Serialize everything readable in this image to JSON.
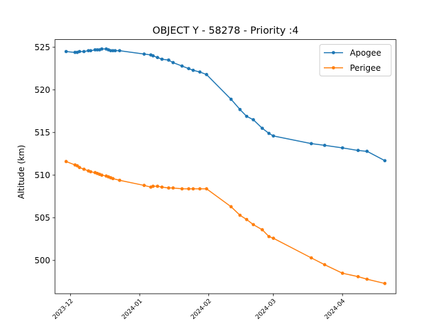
{
  "chart_data": {
    "type": "line",
    "title": "OBJECT Y - 58278 - Priority :4",
    "xlabel": "",
    "ylabel": "Altitude (km)",
    "x_ticks": [
      "2023-12",
      "2024-01",
      "2024-02",
      "2024-03",
      "2024-04"
    ],
    "y_ticks": [
      500,
      505,
      510,
      515,
      520,
      525
    ],
    "xlim": [
      "2023-11-24",
      "2024-04-25"
    ],
    "ylim": [
      496.1,
      525.9
    ],
    "grid": false,
    "legend_position": "top-right",
    "series": [
      {
        "name": "Apogee",
        "color": "#1f77b4",
        "marker": "circle",
        "points": [
          [
            "2023-11-29",
            524.5
          ],
          [
            "2023-12-03",
            524.4
          ],
          [
            "2023-12-04",
            524.4
          ],
          [
            "2023-12-05",
            524.5
          ],
          [
            "2023-12-07",
            524.5
          ],
          [
            "2023-12-09",
            524.6
          ],
          [
            "2023-12-10",
            524.6
          ],
          [
            "2023-12-12",
            524.7
          ],
          [
            "2023-12-13",
            524.7
          ],
          [
            "2023-12-14",
            524.7
          ],
          [
            "2023-12-15",
            524.8
          ],
          [
            "2023-12-17",
            524.8
          ],
          [
            "2023-12-18",
            524.7
          ],
          [
            "2023-12-19",
            524.6
          ],
          [
            "2023-12-20",
            524.6
          ],
          [
            "2023-12-21",
            524.6
          ],
          [
            "2023-12-23",
            524.6
          ],
          [
            "2024-01-03",
            524.2
          ],
          [
            "2024-01-06",
            524.1
          ],
          [
            "2024-01-07",
            524.0
          ],
          [
            "2024-01-09",
            523.8
          ],
          [
            "2024-01-11",
            523.6
          ],
          [
            "2024-01-14",
            523.5
          ],
          [
            "2024-01-16",
            523.2
          ],
          [
            "2024-01-20",
            522.8
          ],
          [
            "2024-01-23",
            522.5
          ],
          [
            "2024-01-25",
            522.3
          ],
          [
            "2024-01-28",
            522.1
          ],
          [
            "2024-01-31",
            521.8
          ],
          [
            "2024-02-11",
            518.9
          ],
          [
            "2024-02-15",
            517.7
          ],
          [
            "2024-02-18",
            516.9
          ],
          [
            "2024-02-21",
            516.5
          ],
          [
            "2024-02-25",
            515.5
          ],
          [
            "2024-02-28",
            514.9
          ],
          [
            "2024-03-01",
            514.6
          ],
          [
            "2024-03-18",
            513.7
          ],
          [
            "2024-03-24",
            513.5
          ],
          [
            "2024-04-01",
            513.2
          ],
          [
            "2024-04-08",
            512.9
          ],
          [
            "2024-04-12",
            512.8
          ],
          [
            "2024-04-20",
            511.7
          ]
        ]
      },
      {
        "name": "Perigee",
        "color": "#ff7f0e",
        "marker": "circle",
        "points": [
          [
            "2023-11-29",
            511.6
          ],
          [
            "2023-12-03",
            511.2
          ],
          [
            "2023-12-04",
            511.1
          ],
          [
            "2023-12-05",
            510.9
          ],
          [
            "2023-12-07",
            510.7
          ],
          [
            "2023-12-09",
            510.5
          ],
          [
            "2023-12-10",
            510.4
          ],
          [
            "2023-12-12",
            510.3
          ],
          [
            "2023-12-13",
            510.2
          ],
          [
            "2023-12-14",
            510.1
          ],
          [
            "2023-12-15",
            510.0
          ],
          [
            "2023-12-17",
            509.9
          ],
          [
            "2023-12-18",
            509.8
          ],
          [
            "2023-12-19",
            509.7
          ],
          [
            "2023-12-20",
            509.6
          ],
          [
            "2023-12-23",
            509.4
          ],
          [
            "2024-01-03",
            508.8
          ],
          [
            "2024-01-06",
            508.6
          ],
          [
            "2024-01-07",
            508.7
          ],
          [
            "2024-01-09",
            508.7
          ],
          [
            "2024-01-11",
            508.6
          ],
          [
            "2024-01-14",
            508.5
          ],
          [
            "2024-01-16",
            508.5
          ],
          [
            "2024-01-20",
            508.4
          ],
          [
            "2024-01-23",
            508.4
          ],
          [
            "2024-01-25",
            508.4
          ],
          [
            "2024-01-28",
            508.4
          ],
          [
            "2024-01-31",
            508.4
          ],
          [
            "2024-02-11",
            506.3
          ],
          [
            "2024-02-15",
            505.3
          ],
          [
            "2024-02-18",
            504.8
          ],
          [
            "2024-02-21",
            504.2
          ],
          [
            "2024-02-25",
            503.6
          ],
          [
            "2024-02-28",
            502.8
          ],
          [
            "2024-03-01",
            502.6
          ],
          [
            "2024-03-18",
            500.3
          ],
          [
            "2024-03-24",
            499.5
          ],
          [
            "2024-04-01",
            498.5
          ],
          [
            "2024-04-08",
            498.1
          ],
          [
            "2024-04-12",
            497.8
          ],
          [
            "2024-04-20",
            497.3
          ]
        ]
      }
    ]
  }
}
